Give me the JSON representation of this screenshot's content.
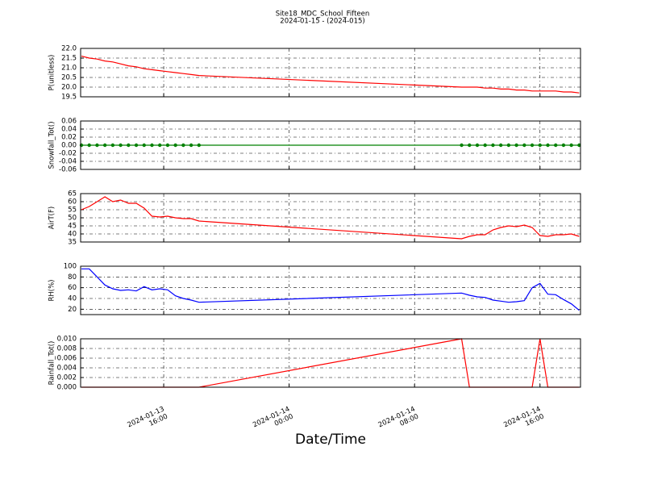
{
  "title": "Site18_MDC_School_Fifteen",
  "subtitle": "2024-01-15 - (2024-015)",
  "xlabel": "Date/Time",
  "chart_data": [
    {
      "type": "line",
      "ylabel": "P(unitless)",
      "x": [
        "2024-01-13 10:45",
        "2024-01-13 11:15",
        "2024-01-13 11:45",
        "2024-01-13 12:15",
        "2024-01-13 12:45",
        "2024-01-13 13:15",
        "2024-01-13 13:45",
        "2024-01-13 14:15",
        "2024-01-13 14:45",
        "2024-01-13 15:15",
        "2024-01-13 15:45",
        "2024-01-13 16:15",
        "2024-01-13 16:45",
        "2024-01-13 17:15",
        "2024-01-13 17:45",
        "2024-01-13 18:15",
        "2024-01-14 11:00",
        "2024-01-14 11:30",
        "2024-01-14 12:00",
        "2024-01-14 12:30",
        "2024-01-14 13:00",
        "2024-01-14 13:30",
        "2024-01-14 14:00",
        "2024-01-14 14:30",
        "2024-01-14 15:00",
        "2024-01-14 15:30",
        "2024-01-14 16:00",
        "2024-01-14 16:30",
        "2024-01-14 17:00",
        "2024-01-14 17:30",
        "2024-01-14 18:00",
        "2024-01-14 18:30"
      ],
      "series": [
        {
          "color": "#ff0000",
          "values": [
            21.6,
            21.5,
            21.45,
            21.35,
            21.3,
            21.2,
            21.1,
            21.05,
            20.95,
            20.9,
            20.85,
            20.8,
            20.75,
            20.7,
            20.65,
            20.6,
            20.0,
            20.0,
            20.0,
            19.95,
            19.95,
            19.9,
            19.9,
            19.85,
            19.85,
            19.8,
            19.8,
            19.8,
            19.8,
            19.75,
            19.75,
            19.7
          ]
        }
      ],
      "xlim": [
        "2024-01-13 10:42",
        "2024-01-14 18:35"
      ],
      "xticks": [
        "2024-01-13 16:00",
        "2024-01-14 00:00",
        "2024-01-14 08:00",
        "2024-01-14 16:00"
      ],
      "ylim": [
        19.5,
        22.0
      ],
      "yticks": [
        19.5,
        {
          "value": 20,
          "label": "20.0"
        },
        20.5,
        {
          "value": 21,
          "label": "21.0"
        },
        21.5,
        {
          "value": 22,
          "label": "22.0"
        }
      ],
      "grid": true
    },
    {
      "type": "line",
      "ylabel": "Snowfall_Tot()",
      "markers": true,
      "x": [
        "2024-01-13 10:45",
        "2024-01-13 11:15",
        "2024-01-13 11:45",
        "2024-01-13 12:15",
        "2024-01-13 12:45",
        "2024-01-13 13:15",
        "2024-01-13 13:45",
        "2024-01-13 14:15",
        "2024-01-13 14:45",
        "2024-01-13 15:15",
        "2024-01-13 15:45",
        "2024-01-13 16:15",
        "2024-01-13 16:45",
        "2024-01-13 17:15",
        "2024-01-13 17:45",
        "2024-01-13 18:15",
        "2024-01-14 11:00",
        "2024-01-14 11:30",
        "2024-01-14 12:00",
        "2024-01-14 12:30",
        "2024-01-14 13:00",
        "2024-01-14 13:30",
        "2024-01-14 14:00",
        "2024-01-14 14:30",
        "2024-01-14 15:00",
        "2024-01-14 15:30",
        "2024-01-14 16:00",
        "2024-01-14 16:30",
        "2024-01-14 17:00",
        "2024-01-14 17:30",
        "2024-01-14 18:00",
        "2024-01-14 18:30"
      ],
      "series": [
        {
          "color": "#008000",
          "values": [
            0,
            0,
            0,
            0,
            0,
            0,
            0,
            0,
            0,
            0,
            0,
            0,
            0,
            0,
            0,
            0,
            0,
            0,
            0,
            0,
            0,
            0,
            0,
            0,
            0,
            0,
            0,
            0,
            0,
            0,
            0,
            0
          ]
        }
      ],
      "xlim": [
        "2024-01-13 10:42",
        "2024-01-14 18:35"
      ],
      "xticks": [
        "2024-01-13 16:00",
        "2024-01-14 00:00",
        "2024-01-14 08:00",
        "2024-01-14 16:00"
      ],
      "ylim": [
        -0.06,
        0.06
      ],
      "yticks": [
        {
          "value": -0.06,
          "label": "-0.06"
        },
        {
          "value": -0.04,
          "label": "-0.04"
        },
        {
          "value": -0.02,
          "label": "-0.02"
        },
        {
          "value": 0,
          "label": "0.00"
        },
        {
          "value": 0.02,
          "label": "0.02"
        },
        {
          "value": 0.04,
          "label": "0.04"
        },
        {
          "value": 0.06,
          "label": "0.06"
        }
      ],
      "grid": true
    },
    {
      "type": "line",
      "ylabel": "AirT(F)",
      "x": [
        "2024-01-13 10:45",
        "2024-01-13 11:15",
        "2024-01-13 11:45",
        "2024-01-13 12:15",
        "2024-01-13 12:45",
        "2024-01-13 13:15",
        "2024-01-13 13:45",
        "2024-01-13 14:15",
        "2024-01-13 14:45",
        "2024-01-13 15:15",
        "2024-01-13 15:45",
        "2024-01-13 16:15",
        "2024-01-13 16:45",
        "2024-01-13 17:15",
        "2024-01-13 17:45",
        "2024-01-13 18:15",
        "2024-01-14 11:00",
        "2024-01-14 11:30",
        "2024-01-14 12:00",
        "2024-01-14 12:30",
        "2024-01-14 13:00",
        "2024-01-14 13:30",
        "2024-01-14 14:00",
        "2024-01-14 14:30",
        "2024-01-14 15:00",
        "2024-01-14 15:30",
        "2024-01-14 16:00",
        "2024-01-14 16:30",
        "2024-01-14 17:00",
        "2024-01-14 17:30",
        "2024-01-14 18:00",
        "2024-01-14 18:30"
      ],
      "series": [
        {
          "color": "#ff0000",
          "values": [
            55,
            57,
            60,
            63,
            60,
            61,
            59,
            59,
            56,
            51,
            50.5,
            51,
            50,
            49.5,
            49.5,
            48,
            37,
            38.5,
            39.5,
            39.5,
            42.5,
            44,
            45,
            44.5,
            45.5,
            44,
            39,
            38.5,
            39.5,
            39.5,
            40,
            38.5
          ]
        }
      ],
      "xlim": [
        "2024-01-13 10:42",
        "2024-01-14 18:35"
      ],
      "xticks": [
        "2024-01-13 16:00",
        "2024-01-14 00:00",
        "2024-01-14 08:00",
        "2024-01-14 16:00"
      ],
      "ylim": [
        35,
        65
      ],
      "yticks": [
        35,
        40,
        45,
        50,
        55,
        60,
        65
      ],
      "grid": true
    },
    {
      "type": "line",
      "ylabel": "RH(%)",
      "x": [
        "2024-01-13 10:45",
        "2024-01-13 11:15",
        "2024-01-13 11:45",
        "2024-01-13 12:15",
        "2024-01-13 12:45",
        "2024-01-13 13:15",
        "2024-01-13 13:45",
        "2024-01-13 14:15",
        "2024-01-13 14:45",
        "2024-01-13 15:15",
        "2024-01-13 15:45",
        "2024-01-13 16:15",
        "2024-01-13 16:45",
        "2024-01-13 17:15",
        "2024-01-13 17:45",
        "2024-01-13 18:15",
        "2024-01-14 11:00",
        "2024-01-14 11:30",
        "2024-01-14 12:00",
        "2024-01-14 12:30",
        "2024-01-14 13:00",
        "2024-01-14 13:30",
        "2024-01-14 14:00",
        "2024-01-14 14:30",
        "2024-01-14 15:00",
        "2024-01-14 15:30",
        "2024-01-14 16:00",
        "2024-01-14 16:30",
        "2024-01-14 17:00",
        "2024-01-14 17:30",
        "2024-01-14 18:00",
        "2024-01-14 18:30"
      ],
      "series": [
        {
          "color": "#0000ff",
          "values": [
            95,
            95,
            80,
            65,
            58,
            55,
            56,
            54,
            62,
            56,
            58,
            56,
            45,
            40,
            37,
            33,
            50,
            46,
            43,
            42,
            37,
            35,
            33,
            34,
            36,
            60,
            68,
            48,
            47,
            38,
            30,
            18
          ]
        }
      ],
      "xlim": [
        "2024-01-13 10:42",
        "2024-01-14 18:35"
      ],
      "xticks": [
        "2024-01-13 16:00",
        "2024-01-14 00:00",
        "2024-01-14 08:00",
        "2024-01-14 16:00"
      ],
      "ylim": [
        10,
        100
      ],
      "yticks": [
        20,
        40,
        60,
        80,
        100
      ],
      "grid": true
    },
    {
      "type": "line",
      "ylabel": "Rainfall_Tot()",
      "x": [
        "2024-01-13 10:45",
        "2024-01-13 11:15",
        "2024-01-13 11:45",
        "2024-01-13 12:15",
        "2024-01-13 12:45",
        "2024-01-13 13:15",
        "2024-01-13 13:45",
        "2024-01-13 14:15",
        "2024-01-13 14:45",
        "2024-01-13 15:15",
        "2024-01-13 15:45",
        "2024-01-13 16:15",
        "2024-01-13 16:45",
        "2024-01-13 17:15",
        "2024-01-13 17:45",
        "2024-01-13 18:15",
        "2024-01-14 11:00",
        "2024-01-14 11:30",
        "2024-01-14 12:00",
        "2024-01-14 12:30",
        "2024-01-14 13:00",
        "2024-01-14 13:30",
        "2024-01-14 14:00",
        "2024-01-14 14:30",
        "2024-01-14 15:00",
        "2024-01-14 15:30",
        "2024-01-14 16:00",
        "2024-01-14 16:30",
        "2024-01-14 17:00",
        "2024-01-14 17:30",
        "2024-01-14 18:00",
        "2024-01-14 18:30"
      ],
      "series": [
        {
          "color": "#ff0000",
          "values": [
            0,
            0,
            0,
            0,
            0,
            0,
            0,
            0,
            0,
            0,
            0,
            0,
            0,
            0,
            0,
            0,
            0.01,
            0,
            0,
            0,
            0,
            0,
            0,
            0,
            0,
            0,
            0.01,
            0,
            0,
            0,
            0,
            0
          ]
        }
      ],
      "xlim": [
        "2024-01-13 10:42",
        "2024-01-14 18:35"
      ],
      "xticks": [
        "2024-01-13 16:00",
        "2024-01-14 00:00",
        "2024-01-14 08:00",
        "2024-01-14 16:00"
      ],
      "ylim": [
        0,
        0.01
      ],
      "yticks": [
        {
          "value": 0,
          "label": "0.000"
        },
        {
          "value": 0.002,
          "label": "0.002"
        },
        {
          "value": 0.004,
          "label": "0.004"
        },
        {
          "value": 0.006,
          "label": "0.006"
        },
        {
          "value": 0.008,
          "label": "0.008"
        },
        {
          "value": 0.01,
          "label": "0.010"
        }
      ],
      "grid": true,
      "xticklabels": true
    }
  ]
}
